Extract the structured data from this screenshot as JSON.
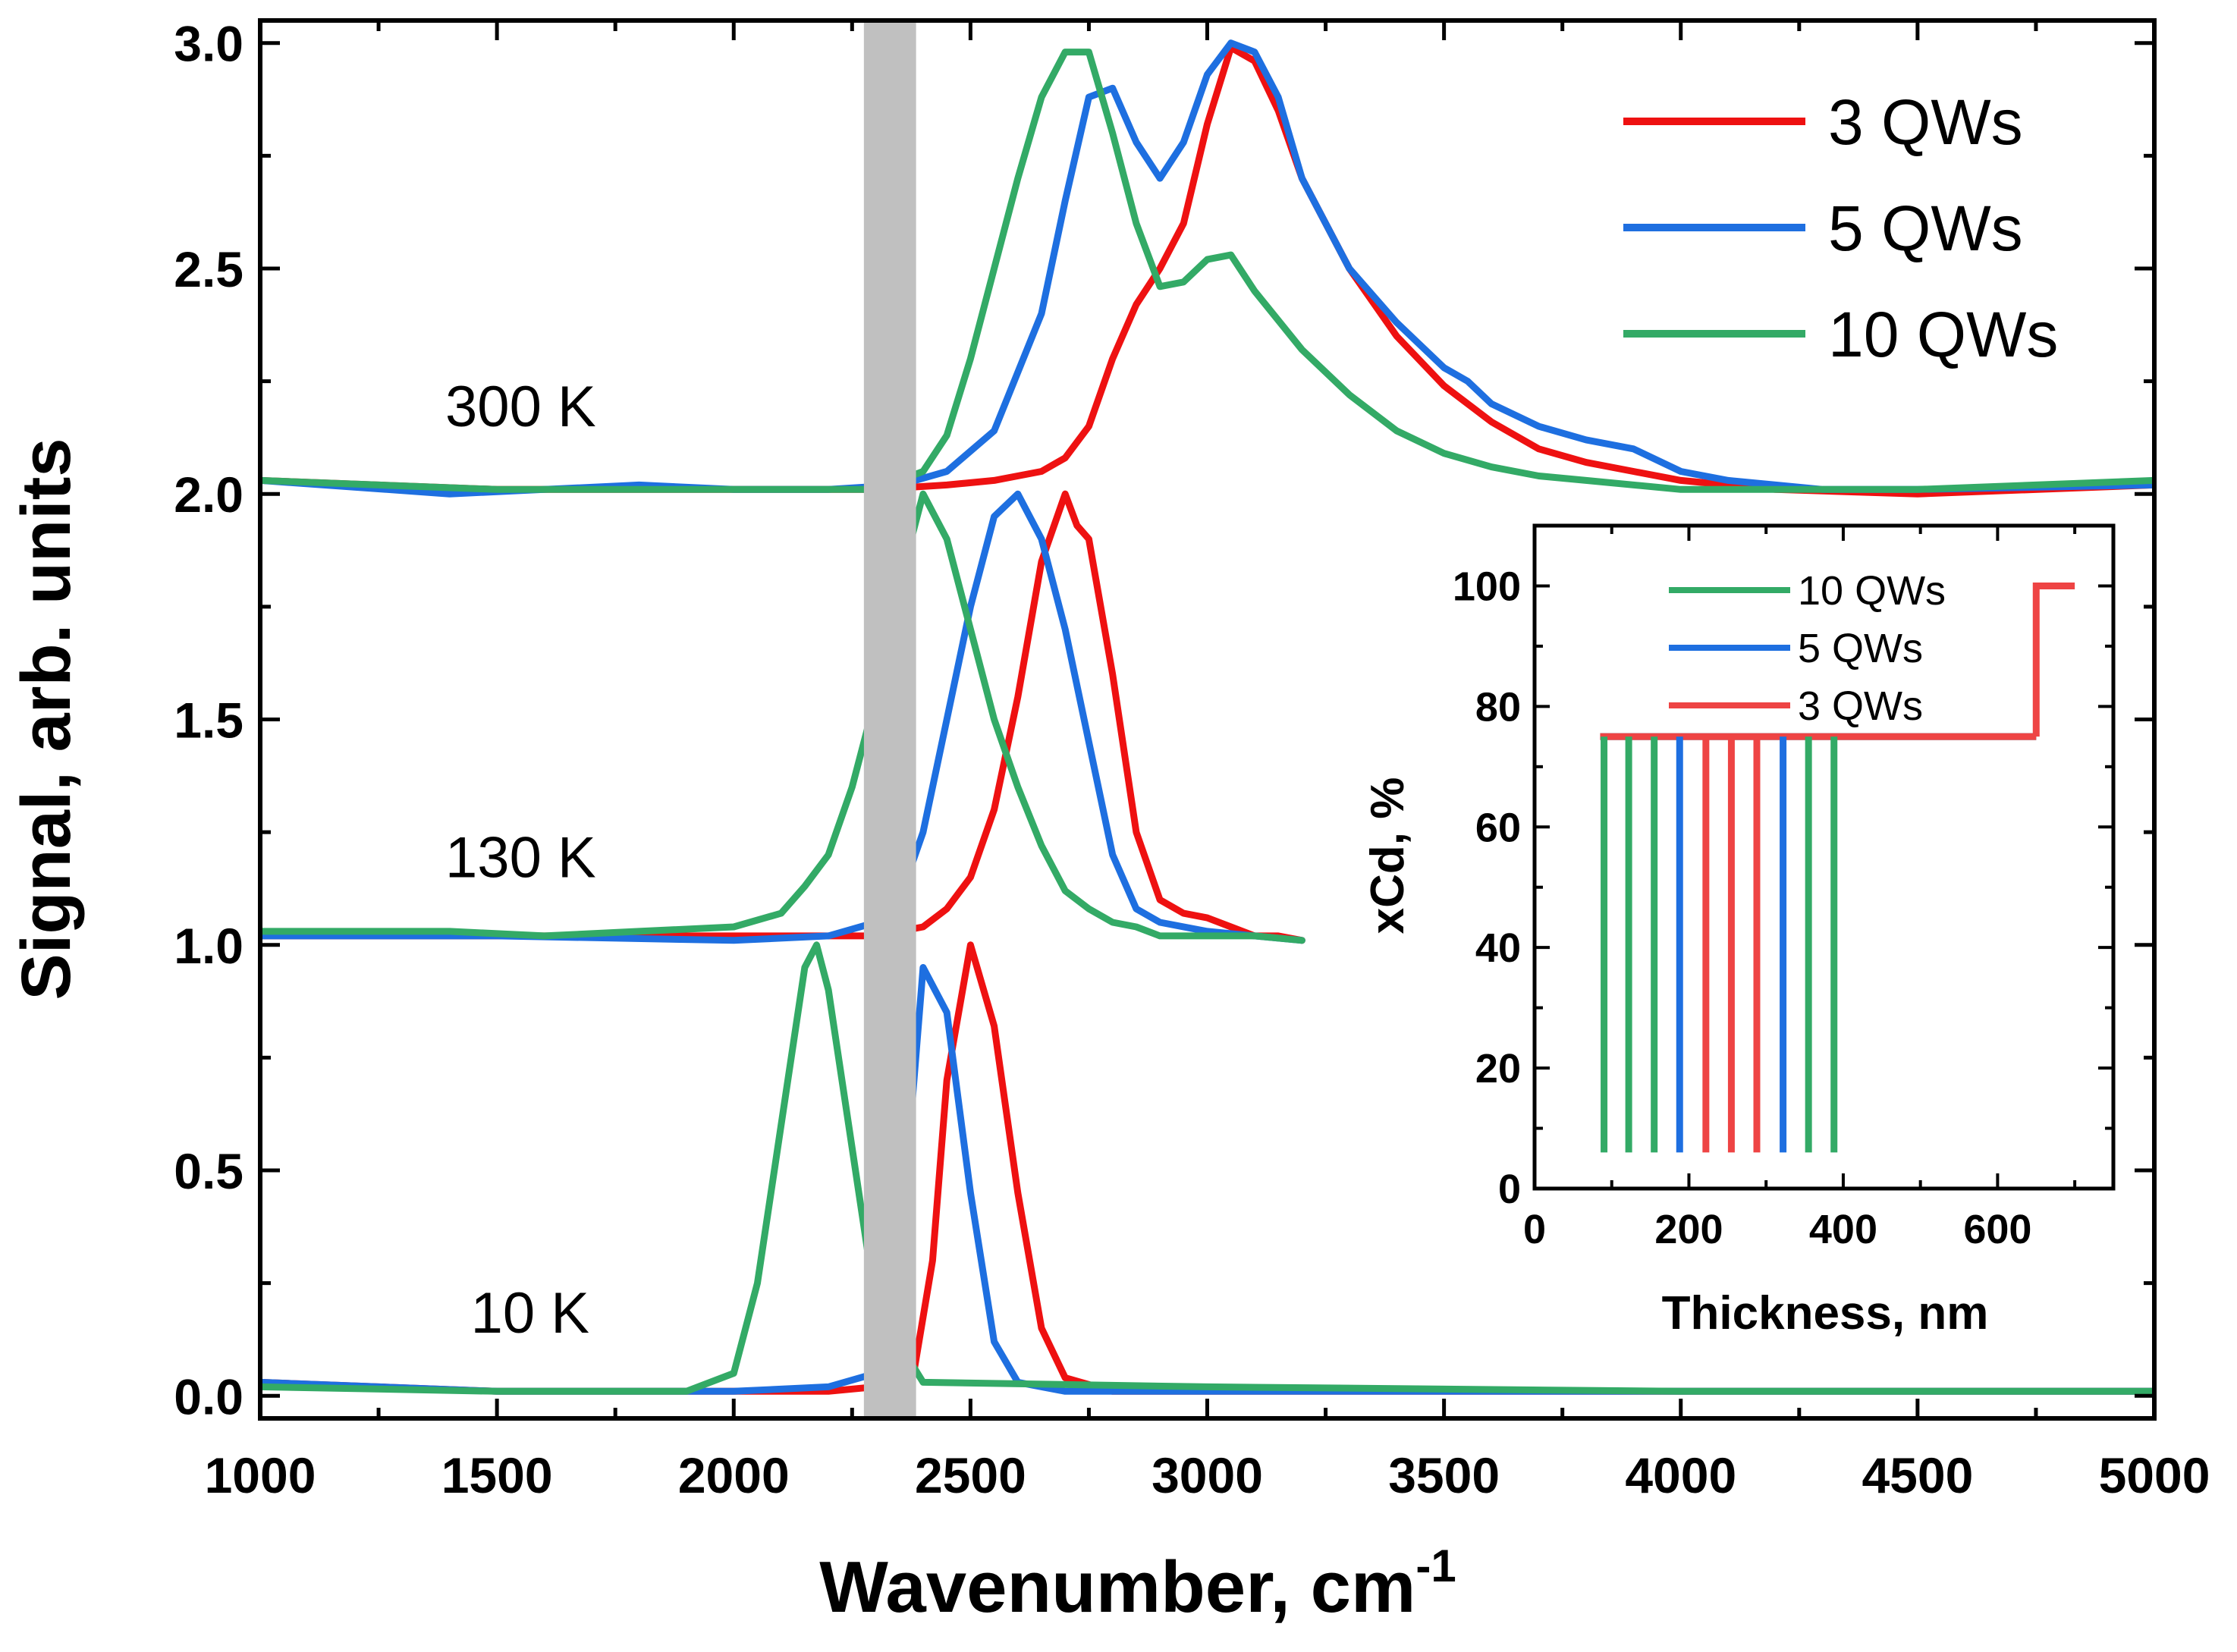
{
  "chart_data": [
    {
      "type": "line",
      "name": "main",
      "xlabel": "Wavenumber, cm",
      "xlabel_superscript": "-1",
      "ylabel": "Signal, arb. units",
      "xlim": [
        1000,
        5000
      ],
      "ylim": [
        -0.05,
        3.05
      ],
      "xticks": [
        1000,
        1500,
        2000,
        2500,
        3000,
        3500,
        4000,
        4500,
        5000
      ],
      "xtick_labels": [
        "1000",
        "1500",
        "2000",
        "2500",
        "3000",
        "3500",
        "4000",
        "4500",
        "5000"
      ],
      "yticks": [
        0,
        0.5,
        1,
        1.5,
        2,
        2.5,
        3
      ],
      "ytick_labels": [
        "0.0",
        "0.5",
        "1.0",
        "1.5",
        "2.0",
        "2.5",
        "3.0"
      ],
      "legend_position": "top-right",
      "annotations": [
        {
          "text": "300 K",
          "x": 1550,
          "y": 2.15
        },
        {
          "text": "130 K",
          "x": 1550,
          "y": 1.15
        },
        {
          "text": "10 K",
          "x": 1570,
          "y": 0.14
        }
      ],
      "shaded_band": {
        "x0": 2275,
        "x1": 2385,
        "color": "#c0c0c0"
      },
      "series": [
        {
          "name": "3 QWs",
          "color": "#ee1111",
          "segments": [
            {
              "temperature": "300 K",
              "x": [
                1000,
                1500,
                2000,
                2300,
                2450,
                2550,
                2650,
                2700,
                2750,
                2800,
                2850,
                2900,
                2950,
                3000,
                3050,
                3100,
                3150,
                3200,
                3300,
                3400,
                3500,
                3600,
                3700,
                3800,
                3900,
                4000,
                4200,
                4500,
                5000
              ],
              "y": [
                2.03,
                2.01,
                2.01,
                2.01,
                2.02,
                2.03,
                2.05,
                2.08,
                2.15,
                2.3,
                2.42,
                2.5,
                2.6,
                2.82,
                2.99,
                2.96,
                2.85,
                2.7,
                2.5,
                2.35,
                2.24,
                2.16,
                2.1,
                2.07,
                2.05,
                2.03,
                2.01,
                2.0,
                2.02
              ]
            },
            {
              "temperature": "130 K",
              "x": [
                1000,
                1500,
                2000,
                2300,
                2400,
                2450,
                2500,
                2550,
                2600,
                2650,
                2700,
                2725,
                2750,
                2800,
                2850,
                2900,
                2950,
                3000,
                3050,
                3100,
                3150,
                3200
              ],
              "y": [
                1.02,
                1.02,
                1.02,
                1.02,
                1.04,
                1.08,
                1.15,
                1.3,
                1.55,
                1.85,
                2.0,
                1.93,
                1.9,
                1.6,
                1.25,
                1.1,
                1.07,
                1.06,
                1.04,
                1.02,
                1.02,
                1.01
              ]
            },
            {
              "temperature": "10 K",
              "x": [
                1000,
                1500,
                2000,
                2200,
                2300,
                2380,
                2420,
                2450,
                2500,
                2550,
                2600,
                2650,
                2700,
                2800,
                3000,
                4000,
                5000
              ],
              "y": [
                0.03,
                0.01,
                0.01,
                0.01,
                0.02,
                0.05,
                0.3,
                0.7,
                1.0,
                0.82,
                0.45,
                0.15,
                0.04,
                0.01,
                0.01,
                0.01,
                0.01
              ]
            }
          ]
        },
        {
          "name": "5 QWs",
          "color": "#1e6fe0",
          "segments": [
            {
              "temperature": "300 K",
              "x": [
                1000,
                1400,
                1600,
                1800,
                2000,
                2200,
                2350,
                2450,
                2550,
                2650,
                2700,
                2750,
                2800,
                2850,
                2900,
                2950,
                3000,
                3050,
                3100,
                3150,
                3200,
                3300,
                3400,
                3500,
                3550,
                3600,
                3700,
                3800,
                3900,
                4000,
                4100,
                4300,
                4500,
                5000
              ],
              "y": [
                2.03,
                2.0,
                2.01,
                2.02,
                2.01,
                2.01,
                2.02,
                2.05,
                2.14,
                2.4,
                2.65,
                2.88,
                2.9,
                2.78,
                2.7,
                2.78,
                2.93,
                3.0,
                2.98,
                2.88,
                2.7,
                2.5,
                2.38,
                2.28,
                2.25,
                2.2,
                2.15,
                2.12,
                2.1,
                2.05,
                2.03,
                2.01,
                2.01,
                2.02
              ]
            },
            {
              "temperature": "130 K",
              "x": [
                1000,
                1500,
                2000,
                2200,
                2300,
                2350,
                2400,
                2450,
                2500,
                2550,
                2600,
                2650,
                2700,
                2750,
                2800,
                2850,
                2900,
                3000,
                3100,
                3200
              ],
              "y": [
                1.02,
                1.02,
                1.01,
                1.02,
                1.05,
                1.1,
                1.25,
                1.5,
                1.75,
                1.95,
                2.0,
                1.9,
                1.7,
                1.45,
                1.2,
                1.08,
                1.05,
                1.03,
                1.02,
                1.01
              ]
            },
            {
              "temperature": "10 K",
              "x": [
                1000,
                1500,
                2000,
                2200,
                2300,
                2350,
                2400,
                2450,
                2500,
                2550,
                2600,
                2700,
                3000,
                4000,
                5000
              ],
              "y": [
                0.03,
                0.01,
                0.01,
                0.02,
                0.05,
                0.3,
                0.95,
                0.85,
                0.45,
                0.12,
                0.03,
                0.01,
                0.01,
                0.01,
                0.01
              ]
            }
          ]
        },
        {
          "name": "10 QWs",
          "color": "#33aa66",
          "segments": [
            {
              "temperature": "300 K",
              "x": [
                1000,
                1500,
                2000,
                2300,
                2400,
                2450,
                2500,
                2550,
                2600,
                2650,
                2700,
                2750,
                2800,
                2850,
                2900,
                2950,
                3000,
                3050,
                3100,
                3200,
                3300,
                3400,
                3500,
                3600,
                3700,
                3800,
                4000,
                4500,
                5000
              ],
              "y": [
                2.03,
                2.01,
                2.01,
                2.01,
                2.05,
                2.13,
                2.3,
                2.5,
                2.7,
                2.88,
                2.98,
                2.98,
                2.8,
                2.6,
                2.46,
                2.47,
                2.52,
                2.53,
                2.45,
                2.32,
                2.22,
                2.14,
                2.09,
                2.06,
                2.04,
                2.03,
                2.01,
                2.01,
                2.03
              ]
            },
            {
              "temperature": "130 K",
              "x": [
                1000,
                1200,
                1400,
                1600,
                1800,
                2000,
                2100,
                2150,
                2200,
                2250,
                2300,
                2350,
                2400,
                2450,
                2500,
                2550,
                2600,
                2650,
                2700,
                2750,
                2800,
                2850,
                2900,
                2950,
                3000,
                3100,
                3200
              ],
              "y": [
                1.03,
                1.03,
                1.03,
                1.02,
                1.03,
                1.04,
                1.07,
                1.13,
                1.2,
                1.35,
                1.55,
                1.8,
                2.0,
                1.9,
                1.7,
                1.5,
                1.35,
                1.22,
                1.12,
                1.08,
                1.05,
                1.04,
                1.02,
                1.02,
                1.02,
                1.02,
                1.01
              ]
            },
            {
              "temperature": "10 K",
              "x": [
                1000,
                1500,
                1900,
                2000,
                2050,
                2100,
                2150,
                2175,
                2200,
                2250,
                2300,
                2400,
                3000,
                4000,
                5000
              ],
              "y": [
                0.02,
                0.01,
                0.01,
                0.05,
                0.25,
                0.6,
                0.95,
                1.0,
                0.9,
                0.55,
                0.2,
                0.03,
                0.02,
                0.01,
                0.01
              ]
            }
          ]
        }
      ]
    },
    {
      "type": "line",
      "name": "inset",
      "xlabel": "Thickness, nm",
      "ylabel": "xCd, %",
      "xlim": [
        0,
        750
      ],
      "ylim": [
        0,
        110
      ],
      "xticks": [
        0,
        200,
        400,
        600
      ],
      "xtick_labels": [
        "0",
        "200",
        "400",
        "600"
      ],
      "yticks": [
        0,
        20,
        40,
        60,
        80,
        100
      ],
      "ytick_labels": [
        "0",
        "20",
        "40",
        "60",
        "80",
        "100"
      ],
      "legend_position": "top",
      "legend": [
        "10 QWs",
        "5 QWs",
        "3 QWs"
      ],
      "barrier_level": 75,
      "well_level": 6,
      "cap": {
        "x_start": 650,
        "x_end": 700,
        "level": 100
      },
      "wells": [
        {
          "x": 90,
          "series": "10 QWs"
        },
        {
          "x": 122,
          "series": "10 QWs"
        },
        {
          "x": 155,
          "series": "10 QWs"
        },
        {
          "x": 188,
          "series": "5 QWs"
        },
        {
          "x": 222,
          "series": "3 QWs"
        },
        {
          "x": 255,
          "series": "3 QWs"
        },
        {
          "x": 288,
          "series": "3 QWs"
        },
        {
          "x": 322,
          "series": "5 QWs"
        },
        {
          "x": 355,
          "series": "10 QWs"
        },
        {
          "x": 388,
          "series": "10 QWs"
        }
      ],
      "colors": {
        "10 QWs": "#33aa66",
        "5 QWs": "#1e6fe0",
        "3 QWs": "#ee4444"
      }
    }
  ]
}
